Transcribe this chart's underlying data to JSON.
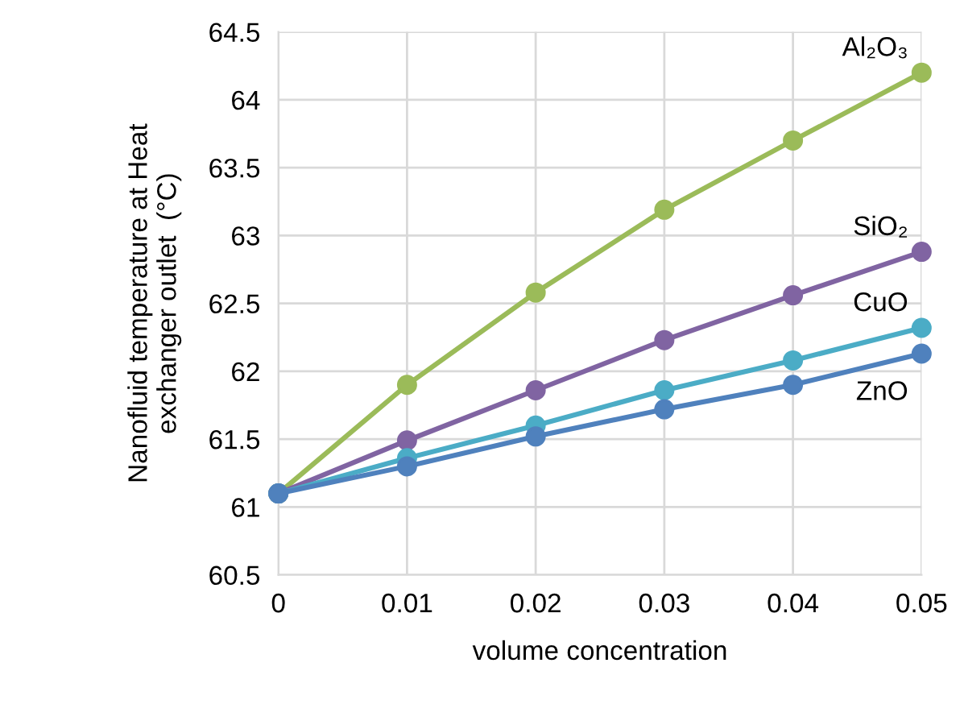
{
  "chart_data": {
    "type": "line",
    "xlabel": "volume concentration",
    "ylabel": "Nanofluid temperature at Heat\nexchanger outlet  (°C)",
    "x": [
      0,
      0.01,
      0.02,
      0.03,
      0.04,
      0.05
    ],
    "series": [
      {
        "name": "Al₂O₃",
        "color": "#9bbb59",
        "values": [
          61.1,
          61.9,
          62.58,
          63.19,
          63.7,
          64.2
        ]
      },
      {
        "name": "SiO₂",
        "color": "#8064a2",
        "values": [
          61.1,
          61.49,
          61.86,
          62.23,
          62.56,
          62.88
        ]
      },
      {
        "name": "CuO",
        "color": "#4bacc6",
        "values": [
          61.1,
          61.36,
          61.6,
          61.86,
          62.08,
          62.32
        ]
      },
      {
        "name": "ZnO",
        "color": "#4f81bd",
        "values": [
          61.1,
          61.3,
          61.52,
          61.72,
          61.9,
          62.13
        ]
      }
    ],
    "xlim": [
      0,
      0.05
    ],
    "xticks": [
      0,
      0.01,
      0.02,
      0.03,
      0.04,
      0.05
    ],
    "ylim": [
      60.5,
      64.5
    ],
    "yticks": [
      60.5,
      61,
      61.5,
      62,
      62.5,
      63,
      63.5,
      64,
      64.5
    ],
    "grid": true,
    "legend": false,
    "marker": "circle",
    "line_style": "solid"
  }
}
